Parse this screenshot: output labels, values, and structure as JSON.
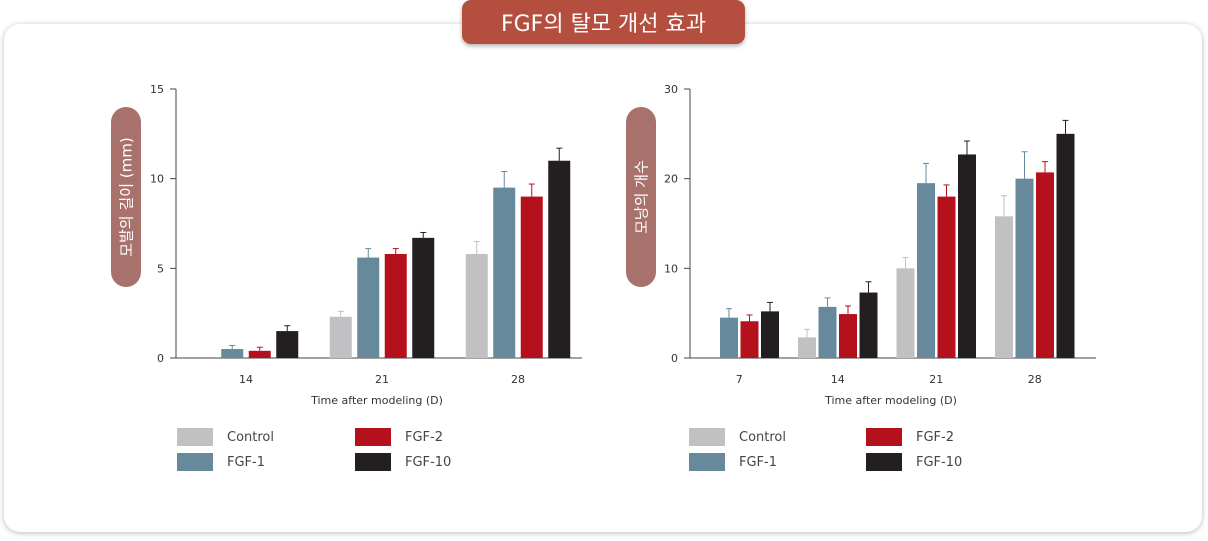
{
  "header": {
    "title": "FGF의 탈모 개선 효과"
  },
  "colors": {
    "Control": "#c1c1c3",
    "FGF-1": "#668a9b",
    "FGF-2": "#b5111d",
    "FGF-10": "#231f20"
  },
  "chart_data": [
    {
      "type": "bar",
      "ylabel": "모발의 길이 (mm)",
      "xlabel": "Time after modeling (D)",
      "categories": [
        "14",
        "21",
        "28"
      ],
      "ylim": [
        0,
        15
      ],
      "yticks": [
        "0",
        "5",
        "10",
        "15"
      ],
      "series": [
        {
          "name": "Control",
          "values": [
            null,
            2.3,
            5.8
          ],
          "errors": [
            null,
            0.3,
            0.7
          ]
        },
        {
          "name": "FGF-1",
          "values": [
            0.5,
            5.6,
            9.5
          ],
          "errors": [
            0.2,
            0.5,
            0.9
          ]
        },
        {
          "name": "FGF-2",
          "values": [
            0.4,
            5.8,
            9.0
          ],
          "errors": [
            0.2,
            0.3,
            0.7
          ]
        },
        {
          "name": "FGF-10",
          "values": [
            1.5,
            6.7,
            11.0
          ],
          "errors": [
            0.3,
            0.3,
            0.7
          ]
        }
      ],
      "legend": [
        "Control",
        "FGF-2",
        "FGF-1",
        "FGF-10"
      ]
    },
    {
      "type": "bar",
      "ylabel": "모낭의 개수",
      "xlabel": "Time after modeling (D)",
      "categories": [
        "7",
        "14",
        "21",
        "28"
      ],
      "ylim": [
        0,
        30
      ],
      "yticks": [
        "0",
        "10",
        "20",
        "30"
      ],
      "series": [
        {
          "name": "Control",
          "values": [
            null,
            2.3,
            10.0,
            15.8
          ],
          "errors": [
            null,
            0.9,
            1.2,
            2.3
          ]
        },
        {
          "name": "FGF-1",
          "values": [
            4.5,
            5.7,
            19.5,
            20.0
          ],
          "errors": [
            1.0,
            1.0,
            2.2,
            3.0
          ]
        },
        {
          "name": "FGF-2",
          "values": [
            4.1,
            4.9,
            18.0,
            20.7
          ],
          "errors": [
            0.7,
            0.9,
            1.3,
            1.2
          ]
        },
        {
          "name": "FGF-10",
          "values": [
            5.2,
            7.3,
            22.7,
            25.0
          ],
          "errors": [
            1.0,
            1.2,
            1.5,
            1.5
          ]
        }
      ],
      "legend": [
        "Control",
        "FGF-2",
        "FGF-1",
        "FGF-10"
      ]
    }
  ]
}
